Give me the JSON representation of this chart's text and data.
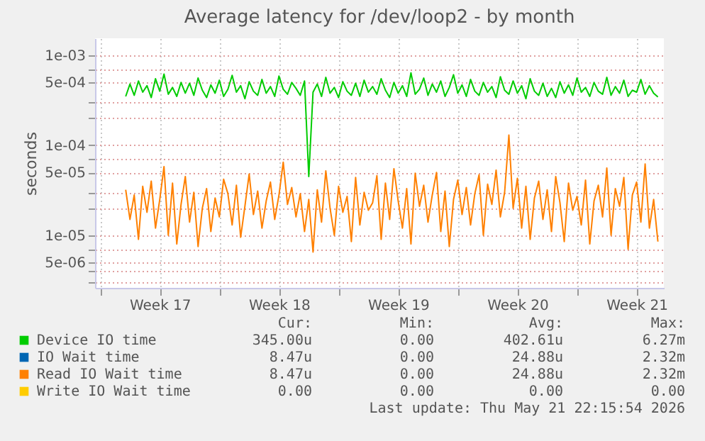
{
  "chart_data": {
    "type": "line",
    "title": "Average latency for /dev/loop2 - by month",
    "ylabel": "seconds",
    "log": "y",
    "grid": true,
    "legend": "bottom",
    "line_style": "solid",
    "marker": "none",
    "xlim": [
      "2026-04-18T16:48",
      "2026-05-22T02:24"
    ],
    "xticks": [
      {
        "value": "2026-04-19",
        "label": null
      },
      {
        "value": "2026-04-22T12:00",
        "label": "Week 17"
      },
      {
        "value": "2026-04-26",
        "label": null
      },
      {
        "value": "2026-04-29T12:00",
        "label": "Week 18"
      },
      {
        "value": "2026-05-03",
        "label": null
      },
      {
        "value": "2026-05-06T12:00",
        "label": "Week 19"
      },
      {
        "value": "2026-05-10",
        "label": null
      },
      {
        "value": "2026-05-13T12:00",
        "label": "Week 20"
      },
      {
        "value": "2026-05-17",
        "label": null
      },
      {
        "value": "2026-05-20T12:00",
        "label": "Week 21"
      }
    ],
    "ylim": [
      2.6e-06,
      0.00155
    ],
    "yticks": [
      {
        "value": 3e-06,
        "label": null
      },
      {
        "value": 4e-06,
        "label": null
      },
      {
        "value": 5e-06,
        "label": "5e-06"
      },
      {
        "value": 7e-06,
        "label": null
      },
      {
        "value": 1e-05,
        "label": "1e-05"
      },
      {
        "value": 2e-05,
        "label": null
      },
      {
        "value": 3e-05,
        "label": null
      },
      {
        "value": 5e-05,
        "label": "5e-05"
      },
      {
        "value": 7e-05,
        "label": null
      },
      {
        "value": 0.0001,
        "label": "1e-04"
      },
      {
        "value": 0.0002,
        "label": null
      },
      {
        "value": 0.0003,
        "label": null
      },
      {
        "value": 0.0005,
        "label": "5e-04"
      },
      {
        "value": 0.0007,
        "label": null
      },
      {
        "value": 0.001,
        "label": "1e-03"
      }
    ],
    "x": [
      "2026-04-20T12:00",
      "2026-04-20T18:00",
      "2026-04-21T00:00",
      "2026-04-21T06:00",
      "2026-04-21T12:00",
      "2026-04-21T18:00",
      "2026-04-22T00:00",
      "2026-04-22T06:00",
      "2026-04-22T12:00",
      "2026-04-22T18:00",
      "2026-04-23T00:00",
      "2026-04-23T06:00",
      "2026-04-23T12:00",
      "2026-04-23T18:00",
      "2026-04-24T00:00",
      "2026-04-24T06:00",
      "2026-04-24T12:00",
      "2026-04-24T18:00",
      "2026-04-25T00:00",
      "2026-04-25T06:00",
      "2026-04-25T12:00",
      "2026-04-25T18:00",
      "2026-04-26T00:00",
      "2026-04-26T06:00",
      "2026-04-26T12:00",
      "2026-04-26T18:00",
      "2026-04-27T00:00",
      "2026-04-27T06:00",
      "2026-04-27T12:00",
      "2026-04-27T18:00",
      "2026-04-28T00:00",
      "2026-04-28T06:00",
      "2026-04-28T12:00",
      "2026-04-28T18:00",
      "2026-04-29T00:00",
      "2026-04-29T06:00",
      "2026-04-29T12:00",
      "2026-04-29T18:00",
      "2026-04-30T00:00",
      "2026-04-30T06:00",
      "2026-04-30T12:00",
      "2026-04-30T18:00",
      "2026-05-01T00:00",
      "2026-05-01T06:00",
      "2026-05-01T12:00",
      "2026-05-01T18:00",
      "2026-05-02T00:00",
      "2026-05-02T06:00",
      "2026-05-02T12:00",
      "2026-05-02T18:00",
      "2026-05-03T00:00",
      "2026-05-03T06:00",
      "2026-05-03T12:00",
      "2026-05-03T18:00",
      "2026-05-04T00:00",
      "2026-05-04T06:00",
      "2026-05-04T12:00",
      "2026-05-04T18:00",
      "2026-05-05T00:00",
      "2026-05-05T06:00",
      "2026-05-05T12:00",
      "2026-05-05T18:00",
      "2026-05-06T00:00",
      "2026-05-06T06:00",
      "2026-05-06T12:00",
      "2026-05-06T18:00",
      "2026-05-07T00:00",
      "2026-05-07T06:00",
      "2026-05-07T12:00",
      "2026-05-07T18:00",
      "2026-05-08T00:00",
      "2026-05-08T06:00",
      "2026-05-08T12:00",
      "2026-05-08T18:00",
      "2026-05-09T00:00",
      "2026-05-09T06:00",
      "2026-05-09T12:00",
      "2026-05-09T18:00",
      "2026-05-10T00:00",
      "2026-05-10T06:00",
      "2026-05-10T12:00",
      "2026-05-10T18:00",
      "2026-05-11T00:00",
      "2026-05-11T06:00",
      "2026-05-11T12:00",
      "2026-05-11T18:00",
      "2026-05-12T00:00",
      "2026-05-12T06:00",
      "2026-05-12T12:00",
      "2026-05-12T18:00",
      "2026-05-13T00:00",
      "2026-05-13T06:00",
      "2026-05-13T12:00",
      "2026-05-13T18:00",
      "2026-05-14T00:00",
      "2026-05-14T06:00",
      "2026-05-14T12:00",
      "2026-05-14T18:00",
      "2026-05-15T00:00",
      "2026-05-15T06:00",
      "2026-05-15T12:00",
      "2026-05-15T18:00",
      "2026-05-16T00:00",
      "2026-05-16T06:00",
      "2026-05-16T12:00",
      "2026-05-16T18:00",
      "2026-05-17T00:00",
      "2026-05-17T06:00",
      "2026-05-17T12:00",
      "2026-05-17T18:00",
      "2026-05-18T00:00",
      "2026-05-18T06:00",
      "2026-05-18T12:00",
      "2026-05-18T18:00",
      "2026-05-19T00:00",
      "2026-05-19T06:00",
      "2026-05-19T12:00",
      "2026-05-19T18:00",
      "2026-05-20T00:00",
      "2026-05-20T06:00",
      "2026-05-20T12:00",
      "2026-05-20T18:00",
      "2026-05-21T00:00",
      "2026-05-21T06:00",
      "2026-05-21T12:00",
      "2026-05-21T18:00"
    ],
    "series": [
      {
        "name": "Device IO time",
        "color": "#00cc00",
        "values": [
          0.00035,
          0.00048,
          0.00036,
          0.00052,
          0.00039,
          0.00046,
          0.00034,
          0.00055,
          0.0004,
          0.00062,
          0.00037,
          0.00044,
          0.00035,
          0.0005,
          0.00038,
          0.00049,
          0.00036,
          0.00056,
          0.00041,
          0.00034,
          0.00047,
          0.00038,
          0.00053,
          0.00035,
          0.00042,
          0.0006,
          0.00039,
          0.00046,
          0.00033,
          0.00051,
          0.0004,
          0.00036,
          0.00054,
          0.00038,
          0.00045,
          0.00035,
          0.00059,
          0.00042,
          0.00037,
          0.0005,
          0.00043,
          0.00036,
          0.00052,
          4.5e-05,
          0.00039,
          0.00048,
          0.00035,
          0.00057,
          0.00038,
          0.00044,
          0.00034,
          0.00051,
          0.0004,
          0.00036,
          0.00049,
          0.00035,
          0.00053,
          0.00039,
          0.00045,
          0.00037,
          0.00055,
          0.00041,
          0.00034,
          0.0005,
          0.00038,
          0.00046,
          0.00035,
          0.00064,
          0.00037,
          0.00042,
          0.00056,
          0.00036,
          0.00048,
          0.00039,
          0.00052,
          0.00035,
          0.00044,
          0.00061,
          0.00038,
          0.00047,
          0.00035,
          0.00054,
          0.0004,
          0.00036,
          0.0005,
          0.00039,
          0.00045,
          0.00034,
          0.00058,
          0.00041,
          0.00037,
          0.00052,
          0.00038,
          0.00046,
          0.00033,
          0.00055,
          0.0004,
          0.00036,
          0.00049,
          0.00035,
          0.00043,
          0.00034,
          0.00051,
          0.00038,
          0.00047,
          0.00036,
          0.00056,
          0.00039,
          0.00044,
          0.00035,
          0.0005,
          0.0004,
          0.00037,
          0.00057,
          0.00036,
          0.00045,
          0.00038,
          0.00053,
          0.00035,
          0.00041,
          0.00039,
          0.00054,
          0.00037,
          0.00046,
          0.00038,
          0.000345
        ]
      },
      {
        "name": "IO Wait time",
        "color": "#0066b3",
        "values": [
          null,
          null,
          null,
          null,
          null,
          null,
          null,
          null,
          null,
          null,
          null,
          null,
          null,
          null,
          null,
          null,
          null,
          null,
          null,
          null,
          null,
          null,
          null,
          null,
          null,
          null,
          null,
          null,
          null,
          null,
          null,
          null,
          null,
          null,
          null,
          null,
          null,
          null,
          null,
          null,
          null,
          null,
          null,
          null,
          null,
          null,
          null,
          null,
          null,
          null,
          null,
          null,
          null,
          null,
          null,
          null,
          null,
          null,
          null,
          null,
          null,
          null,
          null,
          null,
          null,
          null,
          null,
          null,
          null,
          null,
          null,
          null,
          null,
          null,
          null,
          null,
          null,
          null,
          null,
          null,
          null,
          null,
          null,
          null,
          null,
          null,
          null,
          null,
          null,
          null,
          null,
          null,
          null,
          null,
          null,
          null,
          null,
          null,
          null,
          null,
          null,
          null,
          null,
          null,
          null,
          null,
          null,
          null,
          null,
          null,
          null,
          null,
          null,
          null,
          null,
          null,
          null,
          null,
          null,
          null,
          null,
          null,
          null,
          null,
          null,
          null
        ]
      },
      {
        "name": "Read IO Wait time",
        "color": "#ff8000",
        "values": [
          3.2e-05,
          1.5e-05,
          2.8e-05,
          9e-06,
          3.5e-05,
          1.8e-05,
          4e-05,
          1.2e-05,
          2.5e-05,
          5.8e-05,
          1e-05,
          3.8e-05,
          8e-06,
          2.2e-05,
          4.5e-05,
          1.4e-05,
          3e-05,
          7.5e-06,
          2e-05,
          3.3e-05,
          1.1e-05,
          2.6e-05,
          1.6e-05,
          4.2e-05,
          2.9e-05,
          1.3e-05,
          3.6e-05,
          9.5e-06,
          2.1e-05,
          4.8e-05,
          1.7e-05,
          3.1e-05,
          1.2e-05,
          2.4e-05,
          3.9e-05,
          1.5e-05,
          2.8e-05,
          6.5e-05,
          2.2e-05,
          3.4e-05,
          1.6e-05,
          2.9e-05,
          1.1e-05,
          2.5e-05,
          6.5e-06,
          3.2e-05,
          1.4e-05,
          5.2e-05,
          2e-05,
          1e-05,
          3.5e-05,
          1.8e-05,
          2.7e-05,
          8.5e-06,
          4.4e-05,
          1.3e-05,
          3e-05,
          1.9e-05,
          2.3e-05,
          4.6e-05,
          9e-06,
          3.8e-05,
          1.5e-05,
          5.5e-05,
          2.4e-05,
          1.2e-05,
          3.3e-05,
          8e-06,
          4.9e-05,
          2.1e-05,
          3.6e-05,
          1.4e-05,
          2.8e-05,
          5e-05,
          1.1e-05,
          3.1e-05,
          7.5e-06,
          2.5e-05,
          4.1e-05,
          1.7e-05,
          3.4e-05,
          1.3e-05,
          2.9e-05,
          4.7e-05,
          1e-05,
          3.7e-05,
          2.2e-05,
          5.3e-05,
          1.6e-05,
          3e-05,
          0.00013,
          2e-05,
          4.3e-05,
          1.2e-05,
          3.5e-05,
          9e-06,
          2.6e-05,
          4e-05,
          1.5e-05,
          3.2e-05,
          1.1e-05,
          4.5e-05,
          2.3e-05,
          8.5e-06,
          3.8e-05,
          1.9e-05,
          2.7e-05,
          1.3e-05,
          4.1e-05,
          8e-06,
          2.4e-05,
          3.6e-05,
          1.6e-05,
          5.6e-05,
          1e-05,
          3.3e-05,
          2.1e-05,
          4.4e-05,
          7e-06,
          2.8e-05,
          3.9e-05,
          1.4e-05,
          6.2e-05,
          1.2e-05,
          2.5e-05,
          8.5e-06
        ]
      },
      {
        "name": "Write IO Wait time",
        "color": "#ffcc00",
        "values": [
          null,
          null,
          null,
          null,
          null,
          null,
          null,
          null,
          null,
          null,
          null,
          null,
          null,
          null,
          null,
          null,
          null,
          null,
          null,
          null,
          null,
          null,
          null,
          null,
          null,
          null,
          null,
          null,
          null,
          null,
          null,
          null,
          null,
          null,
          null,
          null,
          null,
          null,
          null,
          null,
          null,
          null,
          null,
          null,
          null,
          null,
          null,
          null,
          null,
          null,
          null,
          null,
          null,
          null,
          null,
          null,
          null,
          null,
          null,
          null,
          null,
          null,
          null,
          null,
          null,
          null,
          null,
          null,
          null,
          null,
          null,
          null,
          null,
          null,
          null,
          null,
          null,
          null,
          null,
          null,
          null,
          null,
          null,
          null,
          null,
          null,
          null,
          null,
          null,
          null,
          null,
          null,
          null,
          null,
          null,
          null,
          null,
          null,
          null,
          null,
          null,
          null,
          null,
          null,
          null,
          null,
          null,
          null,
          null,
          null,
          null,
          null,
          null,
          null,
          null,
          null,
          null,
          null,
          null,
          null,
          null,
          null,
          null,
          null,
          null,
          null
        ]
      }
    ],
    "annotations": [
      "Cur:",
      "Min:",
      "Avg:",
      "Max:",
      "345.00u",
      "0.00",
      "402.61u",
      "6.27m",
      "8.47u",
      "0.00",
      "24.88u",
      "2.32m",
      "8.47u",
      "0.00",
      "24.88u",
      "2.32m",
      "0.00",
      "0.00",
      "0.00",
      "0.00",
      "Last update: Thu May 21 22:15:54 2026"
    ]
  }
}
